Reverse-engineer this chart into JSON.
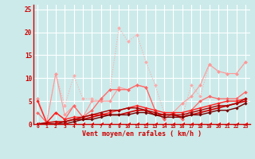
{
  "title": "",
  "xlabel": "Vent moyen/en rafales ( km/h )",
  "bg_color": "#cceaea",
  "grid_color": "#aadddd",
  "xlim": [
    -0.5,
    23.5
  ],
  "ylim": [
    0,
    26
  ],
  "xticks": [
    0,
    1,
    2,
    3,
    4,
    5,
    6,
    7,
    8,
    9,
    10,
    11,
    12,
    13,
    14,
    15,
    16,
    17,
    18,
    19,
    20,
    21,
    22,
    23
  ],
  "yticks": [
    0,
    5,
    10,
    15,
    20,
    25
  ],
  "series": [
    {
      "x": [
        0,
        1,
        2,
        3,
        4,
        5,
        6,
        7,
        8,
        9,
        10,
        11,
        12,
        13,
        14,
        15,
        16,
        17,
        18,
        19,
        20,
        21,
        22,
        23
      ],
      "y": [
        5.5,
        0.5,
        11,
        4,
        10.5,
        5.5,
        5.5,
        5,
        7.5,
        21,
        18,
        19.5,
        13.5,
        8.5,
        2.5,
        2,
        1.5,
        8.5,
        6,
        13,
        11.5,
        11,
        11,
        13.5
      ],
      "color": "#ffaaaa",
      "lw": 0.8,
      "marker": "D",
      "ms": 2.0,
      "ls": ":"
    },
    {
      "x": [
        0,
        1,
        2,
        3,
        4,
        5,
        6,
        7,
        8,
        9,
        10,
        11,
        12,
        13,
        14,
        15,
        16,
        17,
        18,
        19,
        20,
        21,
        22,
        23
      ],
      "y": [
        5.5,
        0.3,
        11,
        2,
        4,
        1.5,
        5,
        5,
        5,
        8,
        7.5,
        8.5,
        8,
        3,
        1,
        2.5,
        4.5,
        6,
        8.5,
        13,
        11.5,
        11,
        11,
        13.5
      ],
      "color": "#ff9999",
      "lw": 0.8,
      "marker": "D",
      "ms": 2.0,
      "ls": "-"
    },
    {
      "x": [
        0,
        1,
        2,
        3,
        4,
        5,
        6,
        7,
        8,
        9,
        10,
        11,
        12,
        13,
        14,
        15,
        16,
        17,
        18,
        19,
        20,
        21,
        22,
        23
      ],
      "y": [
        2.5,
        0.3,
        2.5,
        1,
        4,
        1.5,
        3,
        5.5,
        7.5,
        7.5,
        7.5,
        8.5,
        8,
        3,
        1,
        2.5,
        1,
        3,
        5,
        6,
        5.5,
        5.5,
        5.5,
        7
      ],
      "color": "#ff6666",
      "lw": 0.9,
      "marker": "D",
      "ms": 2.0,
      "ls": "-"
    },
    {
      "x": [
        0,
        1,
        2,
        3,
        4,
        5,
        6,
        7,
        8,
        9,
        10,
        11,
        12,
        13,
        14,
        15,
        16,
        17,
        18,
        19,
        20,
        21,
        22,
        23
      ],
      "y": [
        5.0,
        0.3,
        2.5,
        1,
        1.5,
        1.5,
        2,
        2,
        2.5,
        3,
        3.5,
        4,
        3.5,
        3,
        2.5,
        2.5,
        2.5,
        3,
        3.5,
        4,
        4.5,
        5,
        5,
        5.5
      ],
      "color": "#ff2222",
      "lw": 1.0,
      "marker": "D",
      "ms": 1.8,
      "ls": "-"
    },
    {
      "x": [
        0,
        1,
        2,
        3,
        4,
        5,
        6,
        7,
        8,
        9,
        10,
        11,
        12,
        13,
        14,
        15,
        16,
        17,
        18,
        19,
        20,
        21,
        22,
        23
      ],
      "y": [
        0,
        0.3,
        0.5,
        0.5,
        1,
        1,
        1.5,
        2,
        2,
        2,
        2.5,
        3,
        3,
        2,
        2,
        2,
        1.5,
        2,
        2.5,
        3,
        3.5,
        4,
        4.5,
        5
      ],
      "color": "#cc0000",
      "lw": 1.2,
      "marker": "D",
      "ms": 1.8,
      "ls": "-"
    },
    {
      "x": [
        0,
        1,
        2,
        3,
        4,
        5,
        6,
        7,
        8,
        9,
        10,
        11,
        12,
        13,
        14,
        15,
        16,
        17,
        18,
        19,
        20,
        21,
        22,
        23
      ],
      "y": [
        0,
        0,
        0,
        0.5,
        1,
        1.5,
        2,
        2.5,
        3,
        3,
        3.5,
        3.5,
        3,
        2.5,
        2,
        2,
        2,
        2.5,
        3,
        3.5,
        4,
        4,
        4.5,
        5.5
      ],
      "color": "#aa0000",
      "lw": 1.0,
      "marker": "D",
      "ms": 1.8,
      "ls": "-"
    },
    {
      "x": [
        0,
        1,
        2,
        3,
        4,
        5,
        6,
        7,
        8,
        9,
        10,
        11,
        12,
        13,
        14,
        15,
        16,
        17,
        18,
        19,
        20,
        21,
        22,
        23
      ],
      "y": [
        0,
        0,
        0,
        0,
        0.5,
        1,
        1,
        1.5,
        2,
        2,
        2,
        2.5,
        2.5,
        2,
        1.5,
        1.5,
        1.5,
        2,
        2,
        2.5,
        3,
        3,
        3.5,
        4.5
      ],
      "color": "#770000",
      "lw": 1.0,
      "marker": "D",
      "ms": 1.8,
      "ls": "-"
    },
    {
      "x": [
        0,
        1,
        2,
        3,
        4,
        5,
        6,
        7,
        8,
        9,
        10,
        11,
        12,
        13,
        14,
        15,
        16,
        17,
        18,
        19,
        20,
        21,
        22,
        23
      ],
      "y": [
        0,
        0,
        0,
        0,
        0,
        0,
        0,
        0,
        0,
        0,
        0,
        0,
        0,
        0,
        0,
        0,
        0,
        0,
        0,
        0,
        0,
        0,
        0,
        0
      ],
      "color": "#ff0000",
      "lw": 0.7,
      "marker": 4,
      "ms": 3.0,
      "ls": "--"
    }
  ]
}
